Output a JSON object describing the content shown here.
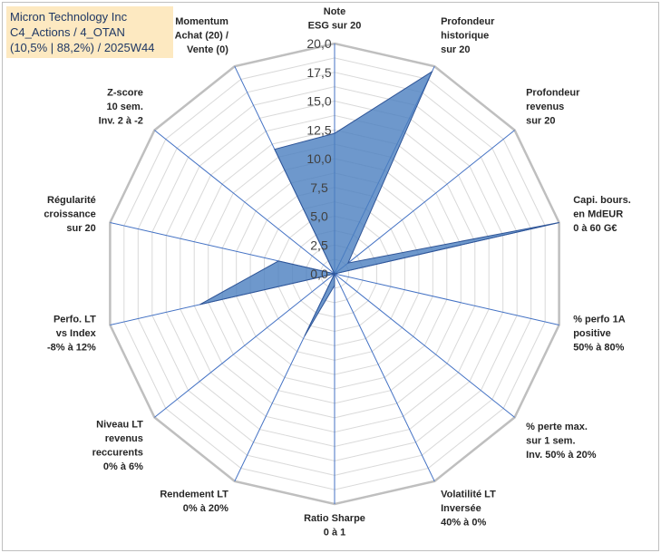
{
  "chart_data": {
    "type": "radar",
    "title_lines": [
      "Micron Technology Inc",
      "C4_Actions / 4_OTAN",
      "(10,5% | 88,2%) / 2025W44"
    ],
    "rlim": [
      0,
      20
    ],
    "tick_labels": [
      "0,0",
      "2,5",
      "5,0",
      "7,5",
      "10,0",
      "12,5",
      "15,0",
      "17,5",
      "20,0"
    ],
    "categories": [
      [
        "Note",
        "ESG sur 20"
      ],
      [
        "Profondeur",
        "historique",
        "sur 20"
      ],
      [
        "Profondeur",
        "revenus",
        "sur 20"
      ],
      [
        "Capi. bours.",
        "en MdEUR",
        "0 à 60 G€"
      ],
      [
        "% perfo 1A",
        "positive",
        "50% à 80%"
      ],
      [
        "% perte max.",
        "sur 1 sem.",
        "Inv. 50% à 20%"
      ],
      [
        "Volatilité LT",
        "Inversée",
        "40% à 0%"
      ],
      [
        "Ratio Sharpe",
        "0 à 1"
      ],
      [
        "Rendement LT",
        "0% à 20%"
      ],
      [
        "Niveau LT",
        "revenus",
        "reccurents",
        "0% à 6%"
      ],
      [
        "Perfo. LT",
        "vs Index",
        "-8% à 12%"
      ],
      [
        "Régularité",
        "croissance",
        "sur 20"
      ],
      [
        "Z-score",
        "10 sem.",
        "Inv. 2 à -2"
      ],
      [
        "Momentum",
        "Achat (20) /",
        "Vente (0)"
      ]
    ],
    "series": [
      {
        "name": "Micron Technology Inc",
        "values": [
          12.2,
          19.5,
          1.5,
          20.0,
          0,
          0,
          0,
          1.0,
          6.0,
          0,
          12.0,
          5.0,
          0,
          12.0
        ]
      }
    ],
    "colors": {
      "fill": "#4a7ebf",
      "fill_opacity": 0.8,
      "stroke": "#2f5597",
      "grid": "#d9d9d9",
      "outer": "#bfbfbf",
      "spoke": "#4472c4"
    }
  }
}
